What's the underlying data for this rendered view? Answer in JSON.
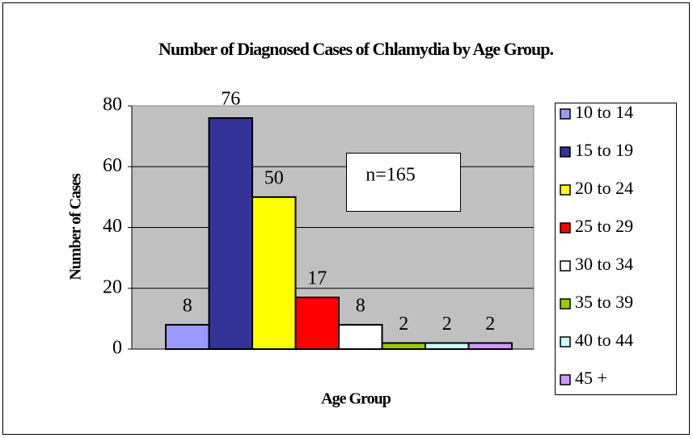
{
  "chart_data": {
    "type": "bar",
    "title": "Number of Diagnosed Cases of Chlamydia by Age Group.",
    "y_label": "Number of Cases",
    "x_label": "Age Group",
    "annotation": "n=165",
    "ylim": [
      0,
      80
    ],
    "yticks": [
      0,
      20,
      40,
      60,
      80
    ],
    "grid": true,
    "legend": "right",
    "series": [
      {
        "name": "10 to 14",
        "color": "#9999ff",
        "values": [
          8
        ]
      },
      {
        "name": "15 to 19",
        "color": "#333399",
        "values": [
          76
        ]
      },
      {
        "name": "20 to 24",
        "color": "#ffff00",
        "values": [
          50
        ]
      },
      {
        "name": "25 to 29",
        "color": "#ff0000",
        "values": [
          17
        ]
      },
      {
        "name": "30 to 34",
        "color": "#ffffff",
        "values": [
          8
        ]
      },
      {
        "name": "35 to 39",
        "color": "#99cc00",
        "values": [
          2
        ]
      },
      {
        "name": "40 to 44",
        "color": "#ccffff",
        "values": [
          2
        ]
      },
      {
        "name": "45 +",
        "color": "#cc99ff",
        "values": [
          2
        ]
      }
    ]
  }
}
